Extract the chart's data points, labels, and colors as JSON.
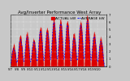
{
  "title": "Avg/Inverter Performance West Array",
  "legend_actual": "ACTUAL kW",
  "legend_avg": "AVERAGE kW",
  "background_color": "#c8c8c8",
  "plot_bg_color": "#c8c8c8",
  "bar_color": "#dd0000",
  "avg_line_color": "#0000ff",
  "grid_color": "#ffffff",
  "ylim": [
    0,
    7
  ],
  "yticks": [
    0,
    1,
    2,
    3,
    4,
    5,
    6,
    7
  ],
  "num_points": 288,
  "days": 14,
  "x_tick_labels": [
    "5/7",
    "5/8",
    "5/9",
    "5/10",
    "5/11",
    "5/12",
    "5/13",
    "5/14",
    "5/15",
    "5/16",
    "5/17",
    "5/18",
    "5/19",
    "5/20"
  ],
  "peaks": [
    2.5,
    3.8,
    4.2,
    3.5,
    5.0,
    4.8,
    6.2,
    6.0,
    5.8,
    4.0,
    5.8,
    6.4,
    4.2,
    3.5
  ],
  "title_fontsize": 4.0,
  "tick_fontsize": 2.8,
  "legend_fontsize": 3.2
}
